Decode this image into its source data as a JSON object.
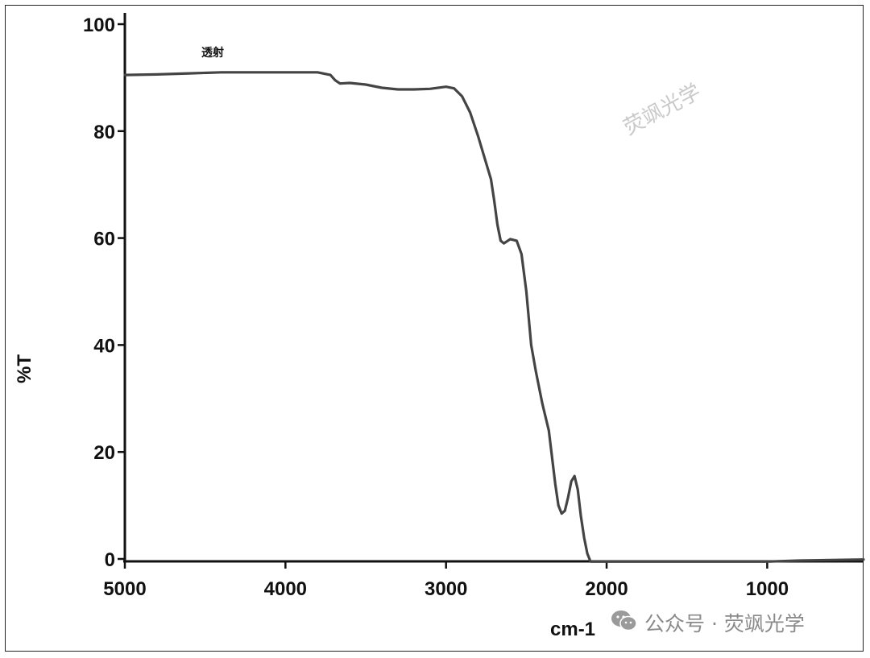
{
  "chart_data": {
    "type": "line",
    "title": "",
    "xlabel": "cm-1",
    "ylabel": "%T",
    "xlim": [
      5000,
      400
    ],
    "ylim": [
      0,
      100
    ],
    "x_reversed": true,
    "x_ticks": [
      5000,
      4000,
      3000,
      2000,
      1000
    ],
    "y_ticks": [
      0,
      20,
      40,
      60,
      80,
      100
    ],
    "grid": false,
    "annotation": "透射",
    "series": [
      {
        "name": "",
        "x": [
          5000,
          4800,
          4600,
          4400,
          4200,
          4000,
          3800,
          3720,
          3690,
          3660,
          3600,
          3500,
          3400,
          3300,
          3200,
          3100,
          3000,
          2950,
          2900,
          2850,
          2800,
          2750,
          2720,
          2700,
          2680,
          2660,
          2640,
          2600,
          2560,
          2530,
          2500,
          2470,
          2440,
          2400,
          2360,
          2320,
          2300,
          2280,
          2260,
          2240,
          2220,
          2200,
          2180,
          2160,
          2140,
          2120,
          2100,
          2080,
          2060,
          2000,
          1800,
          1500,
          1200,
          1000,
          800,
          600,
          400
        ],
        "y": [
          90.5,
          90.6,
          90.8,
          91.0,
          91.0,
          91.0,
          91.0,
          90.5,
          89.5,
          88.9,
          89.0,
          88.7,
          88.1,
          87.8,
          87.8,
          87.9,
          88.3,
          88.0,
          86.5,
          83.5,
          79.0,
          74.0,
          71.0,
          67.0,
          62.5,
          59.5,
          59.0,
          59.8,
          59.5,
          57.0,
          50.0,
          40.0,
          35.0,
          29.0,
          24.0,
          14.0,
          10.0,
          8.5,
          9.0,
          11.5,
          14.5,
          15.5,
          13.0,
          8.0,
          4.0,
          1.0,
          -0.5,
          -0.5,
          -0.5,
          -0.5,
          -0.5,
          -0.5,
          -0.5,
          -0.5,
          -0.3,
          -0.2,
          -0.1
        ]
      }
    ]
  },
  "watermarks": {
    "plot": "荧飒光学",
    "footer": "公众号 · 荧飒光学",
    "footer_icon": "wechat-icon"
  },
  "colors": {
    "line": "#444444",
    "axis": "#111111",
    "watermark": "#c9c9c9"
  }
}
